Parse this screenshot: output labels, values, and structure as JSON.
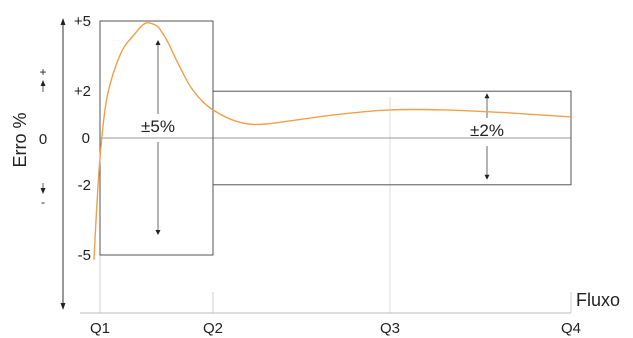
{
  "chart_data": {
    "type": "line",
    "title": "",
    "ylabel": "Erro %",
    "xlabel": "Fluxo",
    "x_ticks": [
      "Q1",
      "Q2",
      "Q3",
      "Q4"
    ],
    "y_ticks": [
      {
        "value": 5,
        "label": "+5"
      },
      {
        "value": 2,
        "label": "+2"
      },
      {
        "value": 0,
        "label": "0"
      },
      {
        "value": -2,
        "label": "-2"
      },
      {
        "value": -5,
        "label": "-5"
      }
    ],
    "y_sign_plus": "+",
    "y_sign_minus": "-",
    "ylim": [
      -7.3,
      6
    ],
    "grid": true,
    "tolerance_bands": [
      {
        "label": "±5%",
        "x_start": "Q1",
        "x_end": "Q2",
        "upper": 5,
        "lower": -5
      },
      {
        "label": "±2%",
        "x_start": "Q2",
        "x_end": "Q4",
        "upper": 2,
        "lower": -2
      }
    ],
    "series": [
      {
        "color": "#f0a04b",
        "x": [
          0,
          0.02,
          0.05,
          0.1,
          0.2,
          0.3,
          0.4,
          0.5,
          0.55,
          0.6,
          0.7,
          0.8,
          0.9,
          1.0,
          1.1,
          1.2,
          1.3,
          1.5,
          1.7,
          2.0,
          2.3,
          2.6,
          2.8,
          3.0
        ],
        "y": [
          -5.2,
          -3.0,
          -0.5,
          1.8,
          3.6,
          4.4,
          4.9,
          4.8,
          4.5,
          4.1,
          3.1,
          2.2,
          1.6,
          1.2,
          0.8,
          0.6,
          0.6,
          0.8,
          1.0,
          1.2,
          1.2,
          1.1,
          1.0,
          0.9
        ]
      }
    ]
  }
}
